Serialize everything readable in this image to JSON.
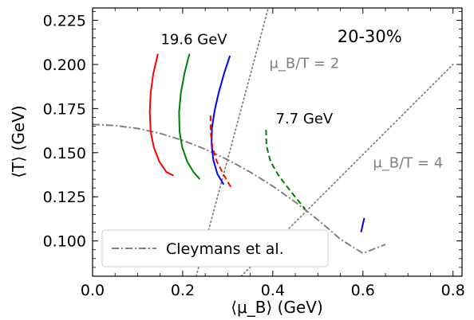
{
  "chart_data": {
    "type": "line",
    "title": "",
    "xlabel": "⟨μ_B⟩ (GeV)",
    "ylabel": "⟨T⟩ (GeV)",
    "xlim": [
      0.0,
      0.82
    ],
    "ylim": [
      0.08,
      0.232
    ],
    "x_ticks": [
      {
        "value": 0.0,
        "label": "0.0"
      },
      {
        "value": 0.2,
        "label": "0.2"
      },
      {
        "value": 0.4,
        "label": "0.4"
      },
      {
        "value": 0.6,
        "label": "0.6"
      },
      {
        "value": 0.8,
        "label": "0.8"
      }
    ],
    "y_ticks": [
      {
        "value": 0.1,
        "label": "0.100"
      },
      {
        "value": 0.125,
        "label": "0.125"
      },
      {
        "value": 0.15,
        "label": "0.150"
      },
      {
        "value": 0.175,
        "label": "0.175"
      },
      {
        "value": 0.2,
        "label": "0.200"
      },
      {
        "value": 0.225,
        "label": "0.225"
      }
    ],
    "grid": false,
    "legend": {
      "placement": "bottom-left",
      "entries": [
        {
          "label": "Cleymans et al.",
          "style": "dashdot",
          "color": "#808080"
        }
      ]
    },
    "annotations": [
      {
        "text": "20-30%",
        "x": 0.615,
        "y": 0.2125,
        "color": "#000000",
        "size": "large"
      },
      {
        "text": "19.6 GeV",
        "x": 0.225,
        "y": 0.2115,
        "color": "#000000",
        "size": "normal"
      },
      {
        "text": "7.7 GeV",
        "x": 0.47,
        "y": 0.1665,
        "color": "#000000",
        "size": "normal"
      },
      {
        "text": "μ_B/T = 2",
        "x": 0.47,
        "y": 0.198,
        "color": "#808080",
        "size": "normal"
      },
      {
        "text": "μ_B/T = 4",
        "x": 0.7,
        "y": 0.1415,
        "color": "#808080",
        "size": "normal"
      }
    ],
    "series": [
      {
        "name": "Cleymans et al.",
        "kind": "freezeout",
        "color": "#808080",
        "style": "dashdot",
        "x": [
          0.0,
          0.05,
          0.1,
          0.15,
          0.2,
          0.25,
          0.3,
          0.35,
          0.4,
          0.45,
          0.5,
          0.55,
          0.6,
          0.65
        ],
        "y": [
          0.166,
          0.1654,
          0.1637,
          0.1609,
          0.157,
          0.152,
          0.146,
          0.139,
          0.131,
          0.122,
          0.112,
          0.101,
          0.093,
          0.098
        ]
      },
      {
        "kind": "ratio-line",
        "color": "#808080",
        "style": "dotted",
        "x": [
          0.23,
          0.39
        ],
        "y": [
          0.08,
          0.232
        ]
      },
      {
        "kind": "ratio-line",
        "color": "#808080",
        "style": "dotted",
        "x": [
          0.33,
          0.8
        ],
        "y": [
          0.08,
          0.2
        ]
      },
      {
        "kind": "trajectory",
        "color": "#ff0000",
        "style": "solid",
        "x": [
          0.145,
          0.135,
          0.129,
          0.127,
          0.129,
          0.136,
          0.148,
          0.164,
          0.18
        ],
        "y": [
          0.206,
          0.195,
          0.184,
          0.173,
          0.162,
          0.153,
          0.145,
          0.139,
          0.137
        ]
      },
      {
        "kind": "trajectory",
        "color": "#008000",
        "style": "solid",
        "x": [
          0.215,
          0.204,
          0.196,
          0.192,
          0.193,
          0.199,
          0.21,
          0.224,
          0.238
        ],
        "y": [
          0.206,
          0.195,
          0.184,
          0.173,
          0.162,
          0.153,
          0.145,
          0.139,
          0.135
        ]
      },
      {
        "kind": "trajectory",
        "color": "#0000ff",
        "style": "solid",
        "x": [
          0.305,
          0.292,
          0.28,
          0.271,
          0.265,
          0.264,
          0.268,
          0.277,
          0.291
        ],
        "y": [
          0.205,
          0.195,
          0.184,
          0.174,
          0.164,
          0.155,
          0.146,
          0.138,
          0.132
        ]
      },
      {
        "kind": "trajectory",
        "color": "#ff0000",
        "style": "dashed",
        "x": [
          0.262,
          0.262,
          0.266,
          0.276,
          0.292,
          0.308
        ],
        "y": [
          0.171,
          0.162,
          0.153,
          0.145,
          0.137,
          0.13
        ]
      },
      {
        "kind": "trajectory",
        "color": "#008000",
        "style": "dashed",
        "x": [
          0.385,
          0.386,
          0.395,
          0.413,
          0.44,
          0.472
        ],
        "y": [
          0.163,
          0.154,
          0.145,
          0.137,
          0.128,
          0.118
        ]
      },
      {
        "kind": "trajectory",
        "color": "#0000ff",
        "style": "solid",
        "x": [
          0.603,
          0.596
        ],
        "y": [
          0.113,
          0.105
        ]
      }
    ]
  }
}
